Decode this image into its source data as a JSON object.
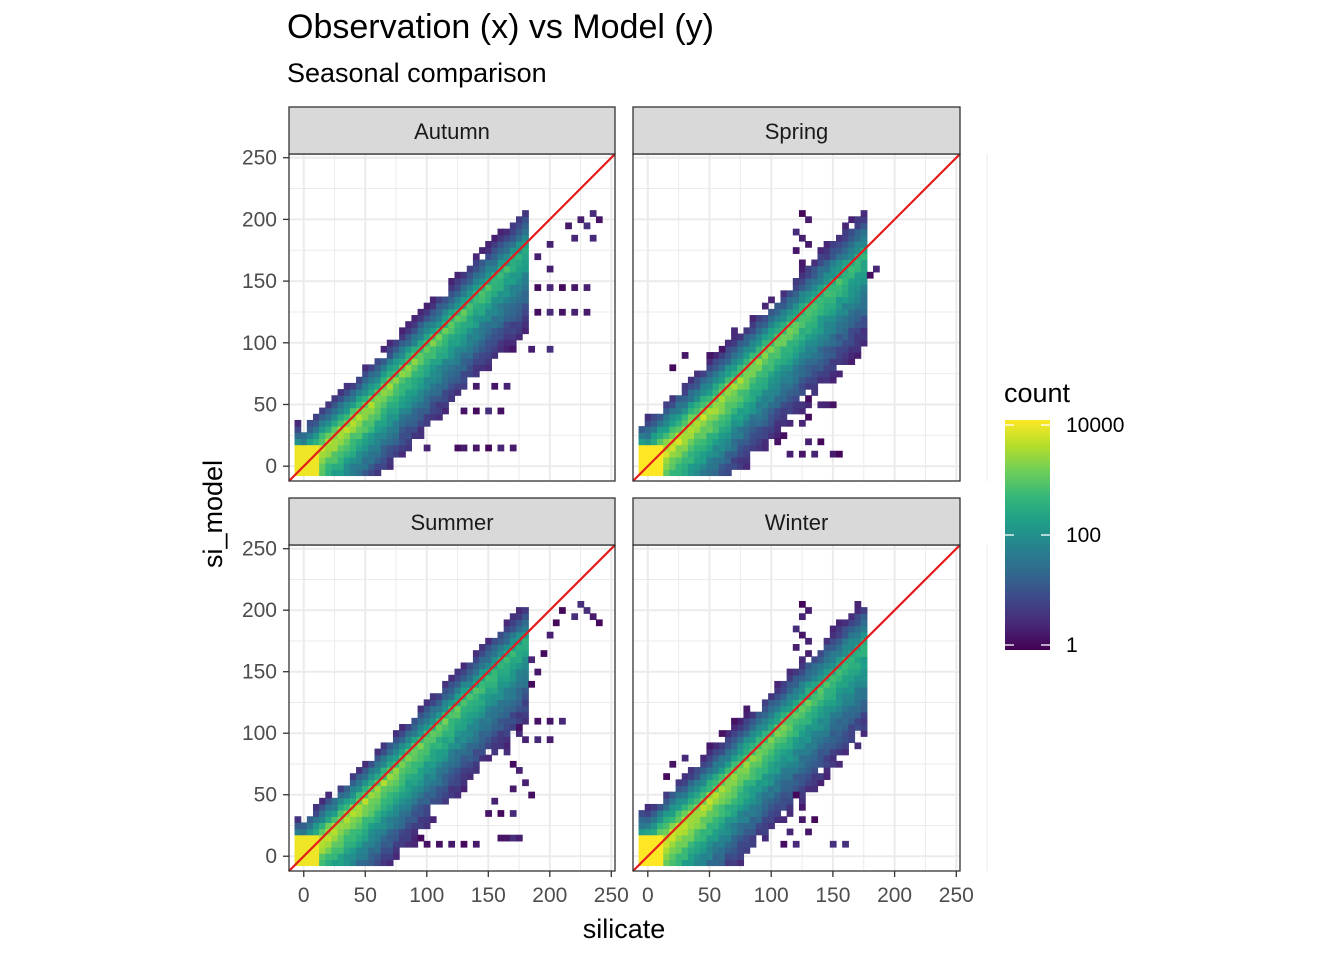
{
  "chart_data": {
    "type": "heatmap",
    "title": "Observation (x) vs Model (y)",
    "subtitle": "Seasonal comparison",
    "xlabel": "silicate",
    "ylabel": "si_model",
    "xlim": [
      -12,
      253
    ],
    "ylim": [
      -12,
      253
    ],
    "x_ticks": [
      0,
      50,
      100,
      150,
      200,
      250
    ],
    "y_ticks": [
      0,
      50,
      100,
      150,
      200,
      250
    ],
    "x_tick_labels": [
      "0",
      "50",
      "100",
      "150",
      "200",
      "250"
    ],
    "y_tick_labels": [
      "0",
      "50",
      "100",
      "150",
      "200",
      "250"
    ],
    "bin_width": 5,
    "reference_line": {
      "slope": 1,
      "intercept": 0,
      "color": "#e41a1c"
    },
    "facets": [
      "Autumn",
      "Spring",
      "Summer",
      "Winter"
    ],
    "panels": [
      {
        "name": "Autumn",
        "max_x": 245,
        "max_y": 205,
        "spread_below": 68,
        "spread_above": 35,
        "peak_log": 3.8,
        "ridge": [
          [
            0,
            0
          ],
          [
            50,
            45
          ],
          [
            100,
            95
          ],
          [
            150,
            145
          ],
          [
            175,
            170
          ]
        ],
        "sparse_cells": [
          [
            215,
            195
          ],
          [
            225,
            200
          ],
          [
            230,
            195
          ],
          [
            235,
            205
          ],
          [
            240,
            200
          ],
          [
            220,
            185
          ],
          [
            235,
            185
          ],
          [
            200,
            180
          ],
          [
            190,
            170
          ],
          [
            200,
            160
          ],
          [
            180,
            150
          ],
          [
            190,
            145
          ],
          [
            200,
            145
          ],
          [
            210,
            145
          ],
          [
            220,
            145
          ],
          [
            230,
            145
          ],
          [
            170,
            130
          ],
          [
            180,
            125
          ],
          [
            190,
            125
          ],
          [
            200,
            125
          ],
          [
            210,
            125
          ],
          [
            220,
            125
          ],
          [
            230,
            125
          ],
          [
            150,
            95
          ],
          [
            160,
            95
          ],
          [
            170,
            95
          ],
          [
            185,
            95
          ],
          [
            200,
            95
          ],
          [
            130,
            65
          ],
          [
            140,
            65
          ],
          [
            155,
            65
          ],
          [
            165,
            65
          ],
          [
            115,
            45
          ],
          [
            130,
            45
          ],
          [
            140,
            45
          ],
          [
            150,
            45
          ],
          [
            160,
            45
          ],
          [
            125,
            15
          ],
          [
            130,
            15
          ],
          [
            140,
            15
          ],
          [
            150,
            15
          ],
          [
            160,
            15
          ],
          [
            170,
            15
          ],
          [
            100,
            15
          ],
          [
            85,
            35
          ],
          [
            95,
            30
          ]
        ]
      },
      {
        "name": "Spring",
        "max_x": 185,
        "max_y": 210,
        "spread_below": 75,
        "spread_above": 40,
        "peak_log": 3.9,
        "ridge": [
          [
            0,
            0
          ],
          [
            50,
            45
          ],
          [
            100,
            95
          ],
          [
            150,
            145
          ],
          [
            170,
            165
          ]
        ],
        "sparse_cells": [
          [
            125,
            205
          ],
          [
            130,
            200
          ],
          [
            120,
            190
          ],
          [
            125,
            185
          ],
          [
            120,
            175
          ],
          [
            130,
            180
          ],
          [
            125,
            165
          ],
          [
            175,
            160
          ],
          [
            180,
            155
          ],
          [
            185,
            160
          ],
          [
            170,
            140
          ],
          [
            170,
            130
          ],
          [
            160,
            125
          ],
          [
            165,
            115
          ],
          [
            150,
            110
          ],
          [
            155,
            100
          ],
          [
            140,
            95
          ],
          [
            150,
            85
          ],
          [
            135,
            75
          ],
          [
            145,
            70
          ],
          [
            130,
            55
          ],
          [
            140,
            50
          ],
          [
            145,
            50
          ],
          [
            150,
            50
          ],
          [
            120,
            45
          ],
          [
            130,
            40
          ],
          [
            115,
            35
          ],
          [
            125,
            35
          ],
          [
            100,
            30
          ],
          [
            110,
            25
          ],
          [
            95,
            20
          ],
          [
            105,
            20
          ],
          [
            130,
            20
          ],
          [
            140,
            20
          ],
          [
            115,
            10
          ],
          [
            125,
            10
          ],
          [
            135,
            10
          ],
          [
            150,
            10
          ],
          [
            155,
            10
          ],
          [
            30,
            90
          ],
          [
            50,
            90
          ],
          [
            20,
            80
          ],
          [
            60,
            95
          ],
          [
            70,
            110
          ],
          [
            100,
            120
          ],
          [
            110,
            125
          ],
          [
            85,
            115
          ]
        ]
      },
      {
        "name": "Summer",
        "max_x": 240,
        "max_y": 205,
        "spread_below": 72,
        "spread_above": 32,
        "peak_log": 3.8,
        "ridge": [
          [
            0,
            0
          ],
          [
            50,
            45
          ],
          [
            100,
            95
          ],
          [
            150,
            145
          ],
          [
            175,
            170
          ]
        ],
        "sparse_cells": [
          [
            210,
            200
          ],
          [
            220,
            195
          ],
          [
            225,
            205
          ],
          [
            230,
            200
          ],
          [
            235,
            195
          ],
          [
            240,
            190
          ],
          [
            200,
            180
          ],
          [
            205,
            190
          ],
          [
            195,
            165
          ],
          [
            185,
            160
          ],
          [
            180,
            150
          ],
          [
            190,
            150
          ],
          [
            185,
            140
          ],
          [
            175,
            125
          ],
          [
            180,
            120
          ],
          [
            190,
            110
          ],
          [
            200,
            110
          ],
          [
            210,
            110
          ],
          [
            175,
            105
          ],
          [
            180,
            95
          ],
          [
            190,
            95
          ],
          [
            200,
            95
          ],
          [
            165,
            85
          ],
          [
            170,
            75
          ],
          [
            175,
            70
          ],
          [
            180,
            60
          ],
          [
            185,
            50
          ],
          [
            170,
            55
          ],
          [
            155,
            45
          ],
          [
            160,
            35
          ],
          [
            150,
            35
          ],
          [
            170,
            35
          ],
          [
            160,
            15
          ],
          [
            165,
            15
          ],
          [
            170,
            15
          ],
          [
            175,
            15
          ],
          [
            140,
            10
          ],
          [
            130,
            10
          ],
          [
            120,
            10
          ],
          [
            110,
            10
          ],
          [
            100,
            10
          ],
          [
            95,
            15
          ],
          [
            90,
            10
          ]
        ]
      },
      {
        "name": "Winter",
        "max_x": 180,
        "max_y": 205,
        "spread_below": 78,
        "spread_above": 40,
        "peak_log": 3.9,
        "ridge": [
          [
            0,
            0
          ],
          [
            50,
            45
          ],
          [
            100,
            95
          ],
          [
            150,
            145
          ],
          [
            170,
            165
          ]
        ],
        "sparse_cells": [
          [
            125,
            205
          ],
          [
            130,
            200
          ],
          [
            125,
            195
          ],
          [
            120,
            185
          ],
          [
            125,
            180
          ],
          [
            130,
            175
          ],
          [
            120,
            170
          ],
          [
            140,
            165
          ],
          [
            150,
            165
          ],
          [
            170,
            165
          ],
          [
            175,
            160
          ],
          [
            175,
            150
          ],
          [
            170,
            140
          ],
          [
            165,
            130
          ],
          [
            170,
            120
          ],
          [
            160,
            110
          ],
          [
            155,
            100
          ],
          [
            145,
            95
          ],
          [
            145,
            80
          ],
          [
            140,
            75
          ],
          [
            145,
            65
          ],
          [
            130,
            60
          ],
          [
            120,
            50
          ],
          [
            115,
            40
          ],
          [
            125,
            40
          ],
          [
            105,
            35
          ],
          [
            100,
            30
          ],
          [
            125,
            30
          ],
          [
            135,
            30
          ],
          [
            115,
            20
          ],
          [
            130,
            20
          ],
          [
            150,
            10
          ],
          [
            160,
            10
          ],
          [
            110,
            10
          ],
          [
            120,
            10
          ],
          [
            85,
            10
          ],
          [
            15,
            65
          ],
          [
            30,
            80
          ],
          [
            20,
            75
          ],
          [
            50,
            90
          ],
          [
            60,
            100
          ],
          [
            70,
            110
          ],
          [
            80,
            120
          ],
          [
            95,
            125
          ],
          [
            105,
            130
          ]
        ]
      }
    ],
    "legend": {
      "title": "count",
      "scale": "log10",
      "breaks": [
        "10000",
        "100",
        "1"
      ],
      "min": 1,
      "max": 10000,
      "palette": [
        "#440154",
        "#482878",
        "#3e4989",
        "#31688e",
        "#26828e",
        "#1f9e89",
        "#35b779",
        "#6ece58",
        "#b5de2b",
        "#fde725"
      ]
    },
    "colors": {
      "panel_border": "#333333",
      "strip_fill": "#d9d9d9",
      "grid": "#ebebeb"
    }
  }
}
